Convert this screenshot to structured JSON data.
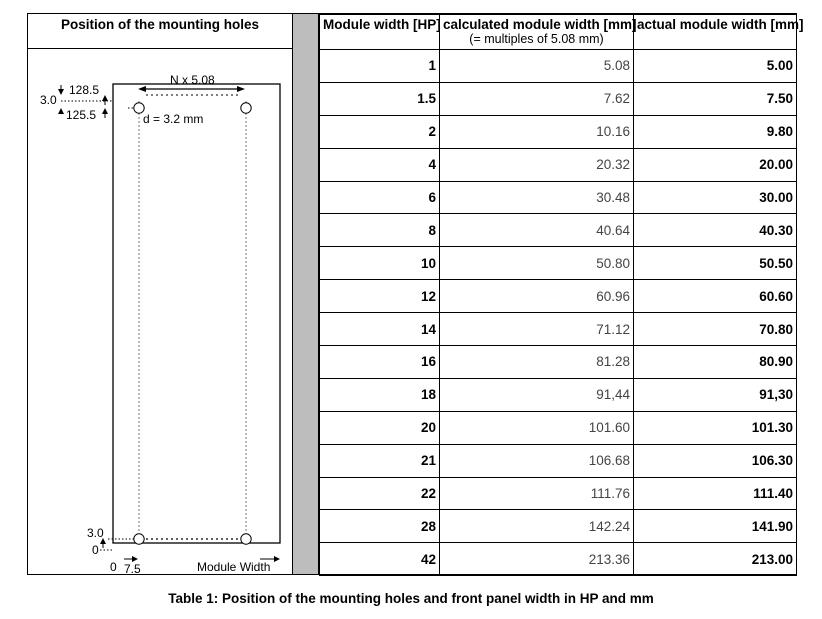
{
  "left_panel": {
    "title": "Position of the mounting holes",
    "diagram": {
      "label_pitch": "N x 5.08",
      "label_top_outer": "128.5",
      "label_top_offset": "3.0",
      "label_top_inner": "125.5",
      "label_diameter": "d = 3.2 mm",
      "label_bottom_offset": "3.0",
      "label_bottom_zero": "0",
      "label_x_zero": "0",
      "label_x_hole": "7.5",
      "label_module_width": "Module Width"
    }
  },
  "table": {
    "headers": {
      "hp": "Module width [HP]",
      "calc": "calculated module width [mm]",
      "calc_sub": "(= multiples of 5.08 mm)",
      "actual": "actual module width [mm]"
    },
    "rows": [
      {
        "hp": "1",
        "calc": "5.08",
        "actual": "5.00"
      },
      {
        "hp": "1.5",
        "calc": "7.62",
        "actual": "7.50"
      },
      {
        "hp": "2",
        "calc": "10.16",
        "actual": "9.80"
      },
      {
        "hp": "4",
        "calc": "20.32",
        "actual": "20.00"
      },
      {
        "hp": "6",
        "calc": "30.48",
        "actual": "30.00"
      },
      {
        "hp": "8",
        "calc": "40.64",
        "actual": "40.30"
      },
      {
        "hp": "10",
        "calc": "50.80",
        "actual": "50.50"
      },
      {
        "hp": "12",
        "calc": "60.96",
        "actual": "60.60"
      },
      {
        "hp": "14",
        "calc": "71.12",
        "actual": "70.80"
      },
      {
        "hp": "16",
        "calc": "81.28",
        "actual": "80.90"
      },
      {
        "hp": "18",
        "calc": "91,44",
        "actual": "91,30"
      },
      {
        "hp": "20",
        "calc": "101.60",
        "actual": "101.30"
      },
      {
        "hp": "21",
        "calc": "106.68",
        "actual": "106.30"
      },
      {
        "hp": "22",
        "calc": "111.76",
        "actual": "111.40"
      },
      {
        "hp": "28",
        "calc": "142.24",
        "actual": "141.90"
      },
      {
        "hp": "42",
        "calc": "213.36",
        "actual": "213.00"
      }
    ]
  },
  "caption": "Table 1: Position of the mounting holes and front panel width in HP and mm"
}
